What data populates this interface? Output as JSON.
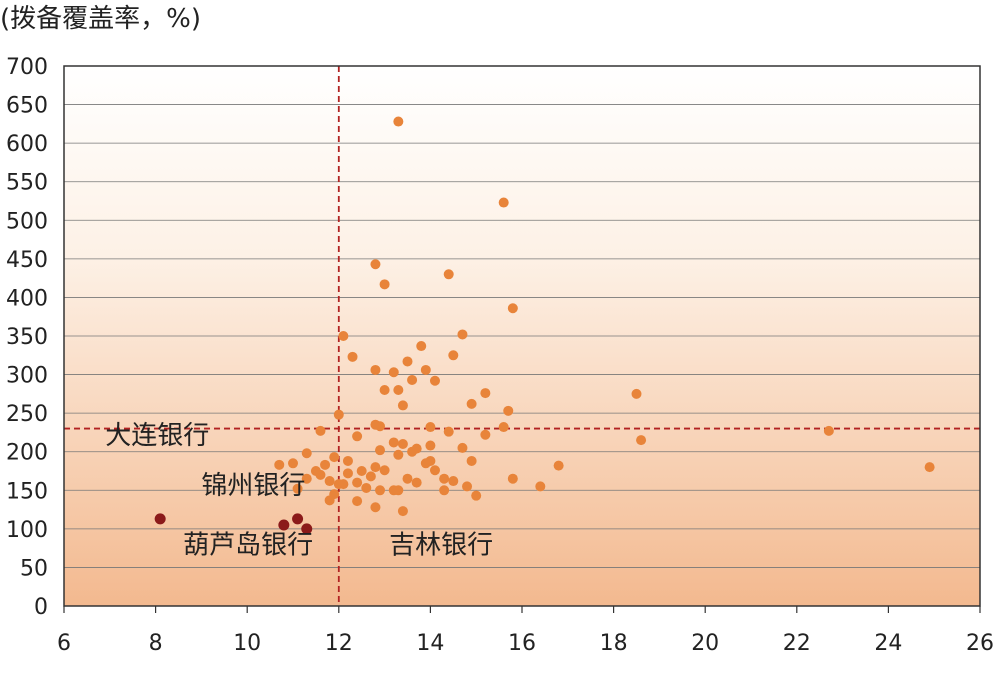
{
  "chart_data": {
    "type": "scatter",
    "title": "",
    "ylabel": "(拨备覆盖率，%)",
    "xlabel": "",
    "xlim": [
      6,
      26
    ],
    "ylim": [
      0,
      700
    ],
    "xticks": [
      6,
      8,
      10,
      12,
      14,
      16,
      18,
      20,
      22,
      24,
      26
    ],
    "yticks": [
      0,
      50,
      100,
      150,
      200,
      250,
      300,
      350,
      400,
      450,
      500,
      550,
      600,
      650,
      700
    ],
    "grid": "horizontal",
    "reference_lines": {
      "x": 12,
      "y": 230,
      "color": "#b22222"
    },
    "colors": {
      "points": "#e8843a",
      "highlight": "#8b1a1a",
      "frame": "#333333",
      "grid": "#777777"
    },
    "annotations": [
      {
        "text": "大连银行",
        "x": 6.9,
        "y": 210
      },
      {
        "text": "锦州银行",
        "x": 9.0,
        "y": 145
      },
      {
        "text": "葫芦岛银行",
        "x": 8.6,
        "y": 68
      },
      {
        "text": "吉林银行",
        "x": 13.1,
        "y": 68
      }
    ],
    "highlighted": [
      {
        "label": "大连银行",
        "x": 8.1,
        "y": 113
      },
      {
        "label": "锦州银行",
        "x": 11.1,
        "y": 113
      },
      {
        "label": "葫芦岛银行",
        "x": 10.8,
        "y": 105
      },
      {
        "label": "葫芦岛银行",
        "x": 11.3,
        "y": 100
      }
    ],
    "points": [
      [
        13.3,
        628
      ],
      [
        15.6,
        523
      ],
      [
        12.8,
        443
      ],
      [
        14.4,
        430
      ],
      [
        13.0,
        417
      ],
      [
        15.8,
        386
      ],
      [
        12.1,
        350
      ],
      [
        14.7,
        352
      ],
      [
        13.8,
        337
      ],
      [
        12.3,
        323
      ],
      [
        14.5,
        325
      ],
      [
        13.5,
        317
      ],
      [
        12.8,
        306
      ],
      [
        13.2,
        303
      ],
      [
        13.9,
        306
      ],
      [
        13.6,
        293
      ],
      [
        14.1,
        292
      ],
      [
        13.0,
        280
      ],
      [
        13.3,
        280
      ],
      [
        15.2,
        276
      ],
      [
        18.5,
        275
      ],
      [
        14.9,
        262
      ],
      [
        13.4,
        260
      ],
      [
        15.7,
        253
      ],
      [
        12.0,
        248
      ],
      [
        12.8,
        235
      ],
      [
        12.9,
        233
      ],
      [
        14.0,
        232
      ],
      [
        15.6,
        232
      ],
      [
        11.6,
        227
      ],
      [
        14.4,
        226
      ],
      [
        15.2,
        222
      ],
      [
        22.7,
        227
      ],
      [
        12.4,
        220
      ],
      [
        13.2,
        212
      ],
      [
        13.4,
        210
      ],
      [
        14.0,
        208
      ],
      [
        18.6,
        215
      ],
      [
        12.9,
        202
      ],
      [
        13.6,
        200
      ],
      [
        14.7,
        205
      ],
      [
        11.3,
        198
      ],
      [
        12.2,
        188
      ],
      [
        13.7,
        204
      ],
      [
        13.3,
        196
      ],
      [
        11.9,
        193
      ],
      [
        14.0,
        188
      ],
      [
        14.9,
        188
      ],
      [
        13.9,
        185
      ],
      [
        11.0,
        185
      ],
      [
        11.7,
        183
      ],
      [
        12.8,
        180
      ],
      [
        16.8,
        182
      ],
      [
        24.9,
        180
      ],
      [
        10.7,
        183
      ],
      [
        11.5,
        175
      ],
      [
        12.5,
        175
      ],
      [
        11.6,
        170
      ],
      [
        12.2,
        172
      ],
      [
        13.0,
        176
      ],
      [
        14.1,
        176
      ],
      [
        12.7,
        168
      ],
      [
        13.5,
        165
      ],
      [
        15.8,
        165
      ],
      [
        11.3,
        165
      ],
      [
        11.8,
        162
      ],
      [
        12.4,
        160
      ],
      [
        14.5,
        162
      ],
      [
        12.1,
        158
      ],
      [
        12.6,
        153
      ],
      [
        13.7,
        160
      ],
      [
        14.3,
        165
      ],
      [
        16.4,
        155
      ],
      [
        14.8,
        155
      ],
      [
        11.1,
        152
      ],
      [
        12.9,
        150
      ],
      [
        13.3,
        150
      ],
      [
        14.3,
        150
      ],
      [
        11.9,
        145
      ],
      [
        15.0,
        143
      ],
      [
        11.8,
        137
      ],
      [
        12.4,
        136
      ],
      [
        12.8,
        128
      ],
      [
        13.4,
        123
      ],
      [
        12.0,
        158
      ],
      [
        13.2,
        150
      ]
    ]
  }
}
